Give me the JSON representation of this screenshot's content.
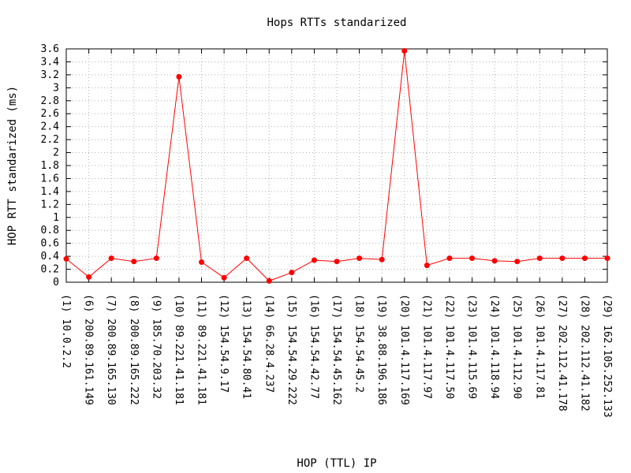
{
  "chart_data": {
    "type": "line",
    "title": "Hops RTTs standarized",
    "xlabel": "HOP (TTL) IP",
    "ylabel": "HOP RTT standarized (ms)",
    "ylim": [
      0,
      3.6
    ],
    "yticks": [
      "0",
      "0.2",
      "0.4",
      "0.6",
      "0.8",
      "1",
      "1.2",
      "1.4",
      "1.6",
      "1.8",
      "2",
      "2.2",
      "2.4",
      "2.6",
      "2.8",
      "3",
      "3.2",
      "3.4",
      "3.6"
    ],
    "grid": true,
    "line_color": "#ff0000",
    "categories": [
      "(1)  10.0.2.2",
      "(6)  200.89.161.149",
      "(7)  200.89.165.130",
      "(8)  200.89.165.222",
      "(9)  185.70.203.32",
      "(10)  89.221.41.181",
      "(11)  89.221.41.181",
      "(12)  154.54.9.17",
      "(13)  154.54.80.41",
      "(14)  66.28.4.237",
      "(15)  154.54.29.222",
      "(16)  154.54.42.77",
      "(17)  154.54.45.162",
      "(18)  154.54.45.2",
      "(19)  38.88.196.186",
      "(20)  101.4.117.169",
      "(21)  101.4.117.97",
      "(22)  101.4.117.50",
      "(23)  101.4.115.69",
      "(24)  101.4.118.94",
      "(25)  101.4.112.90",
      "(26)  101.4.117.81",
      "(27)  202.112.41.178",
      "(28)  202.112.41.182",
      "(29)  162.105.252.133"
    ],
    "values": [
      0.36,
      0.08,
      0.37,
      0.32,
      0.37,
      3.17,
      0.31,
      0.07,
      0.37,
      0.02,
      0.15,
      0.34,
      0.32,
      0.37,
      0.35,
      3.57,
      0.26,
      0.37,
      0.37,
      0.33,
      0.32,
      0.37,
      0.37,
      0.37,
      0.37
    ]
  }
}
